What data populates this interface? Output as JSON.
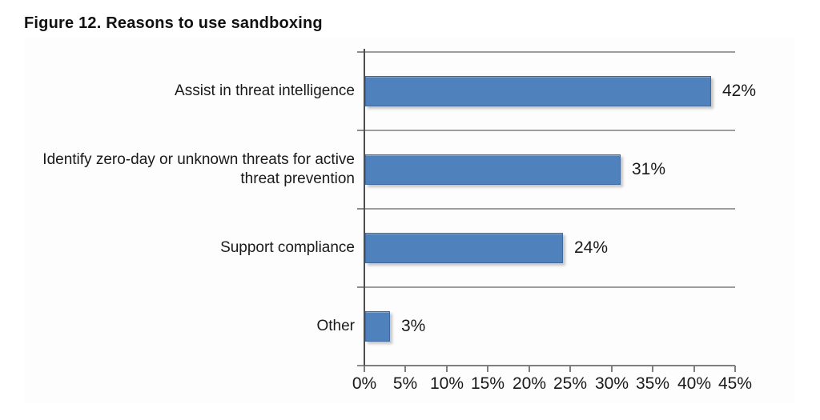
{
  "title": "Figure 12. Reasons to use sandboxing",
  "chart_data": {
    "type": "bar",
    "orientation": "horizontal",
    "title": "Figure 12. Reasons to use sandboxing",
    "categories": [
      "Assist in threat intelligence",
      "Identify zero-day or unknown threats for active threat prevention",
      "Support compliance",
      "Other"
    ],
    "values": [
      42,
      31,
      24,
      3
    ],
    "data_labels": [
      "42%",
      "31%",
      "24%",
      "3%"
    ],
    "xlabel": "",
    "ylabel": "",
    "xlim": [
      0,
      45
    ],
    "x_tick_step": 5,
    "x_tick_labels": [
      "0%",
      "5%",
      "10%",
      "15%",
      "20%",
      "25%",
      "30%",
      "35%",
      "40%",
      "45%"
    ],
    "legend": "none",
    "grid": "horizontal category separators on",
    "colors": {
      "bar_fill": "#4f81bd",
      "bar_border": "#41699b",
      "separator_line": "#9d9d9d",
      "axis_line": "#7f7f7f",
      "value_axis_line": "#4d4d4d",
      "text": "#1a1a1a",
      "background": "#ffffff"
    }
  }
}
